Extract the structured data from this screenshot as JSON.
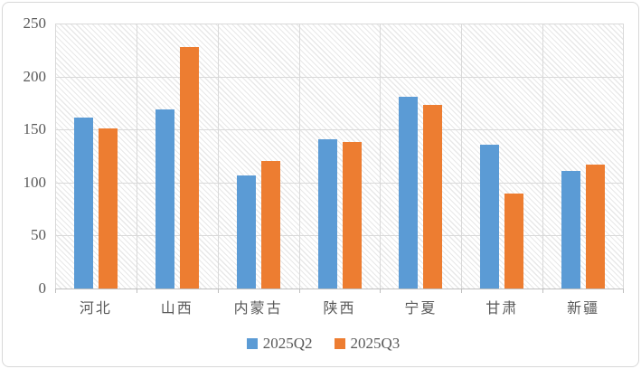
{
  "chart_data": {
    "type": "bar",
    "title": "",
    "categories": [
      "河北",
      "山西",
      "内蒙古",
      "陕西",
      "宁夏",
      "甘肃",
      "新疆"
    ],
    "series": [
      {
        "name": "2025Q2",
        "color": "#5B9BD5",
        "values": [
          161,
          169,
          107,
          141,
          181,
          136,
          111
        ]
      },
      {
        "name": "2025Q3",
        "color": "#ED7D31",
        "values": [
          151,
          228,
          120,
          138,
          173,
          90,
          117
        ]
      }
    ],
    "ylim": [
      0,
      250
    ],
    "yticks": [
      0,
      50,
      100,
      150,
      200,
      250
    ],
    "xlabel": "",
    "ylabel": "",
    "grid": true,
    "legend_position": "bottom",
    "plot_background": "diagonal-hatch"
  },
  "colors": {
    "bar_blue": "#5B9BD5",
    "bar_orange": "#ED7D31",
    "gridline": "#D9D9D9",
    "axis_line": "#BFBFBF",
    "axis_text": "#595959",
    "frame_border": "#D8D8D8",
    "background": "#FFFFFF"
  }
}
